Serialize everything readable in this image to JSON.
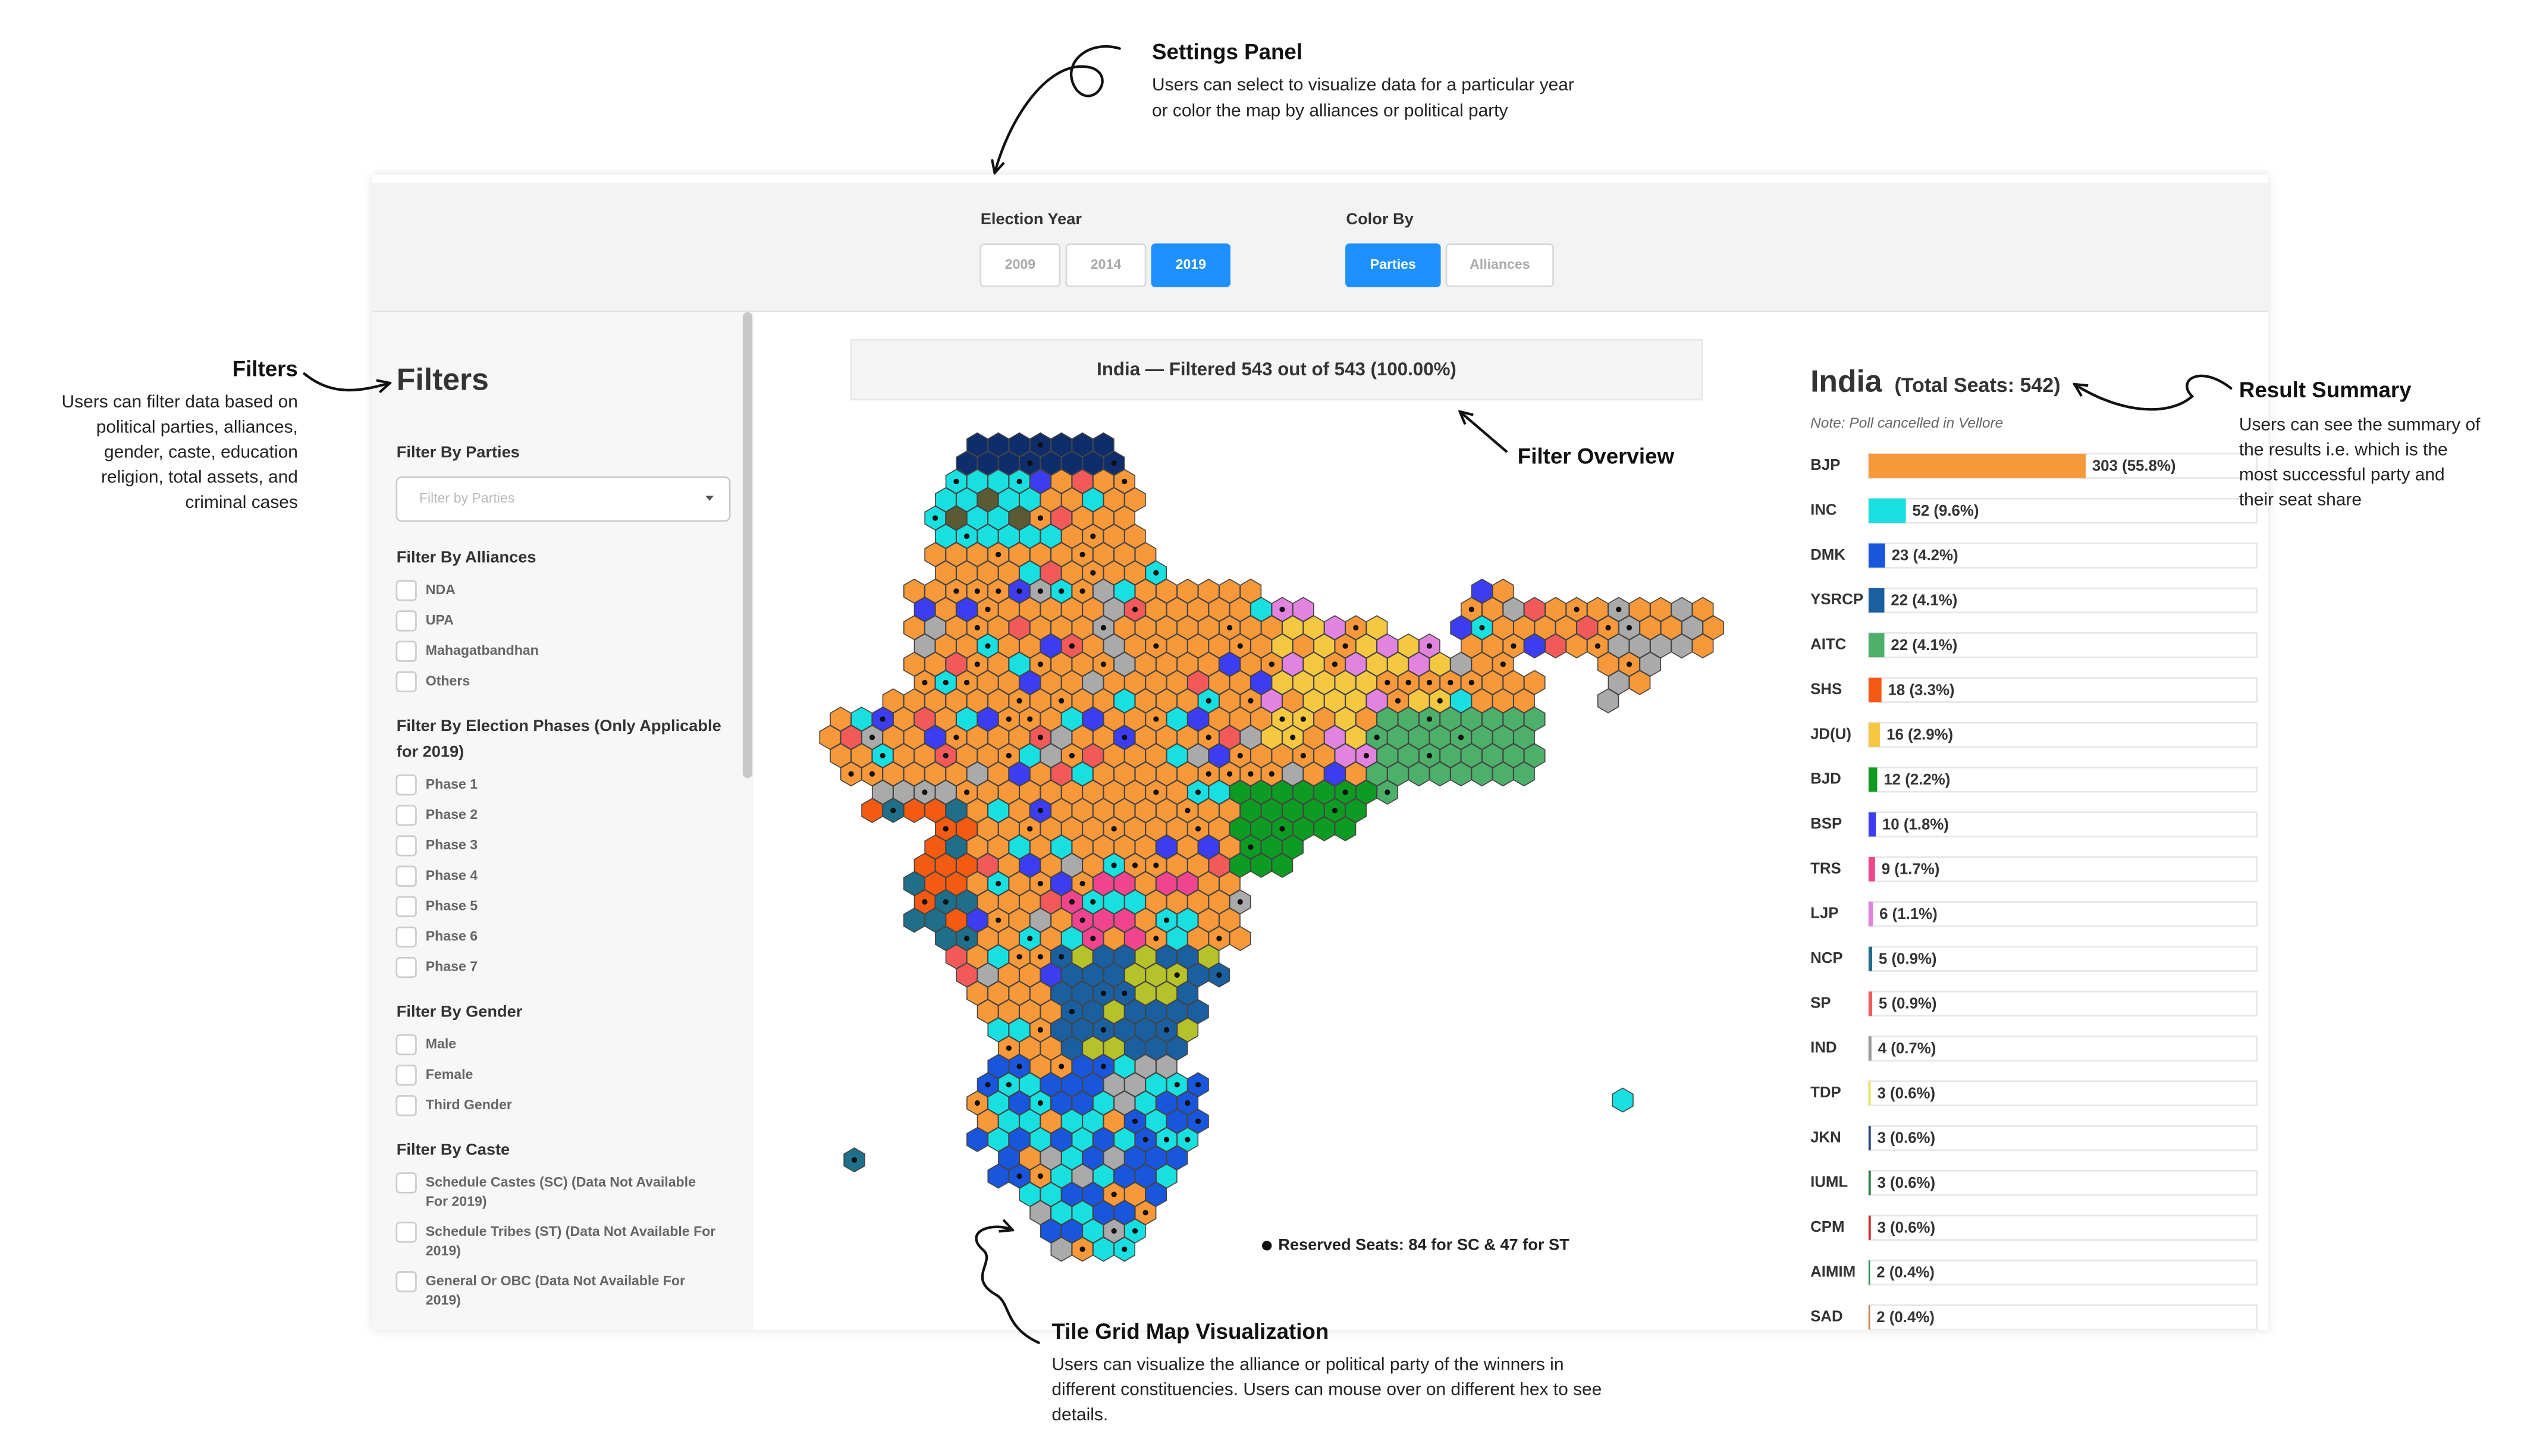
{
  "annotations": {
    "settings": {
      "title": "Settings Panel",
      "lines": [
        "Users can select to visualize data for a particular year",
        "or color the map by alliances or political party"
      ]
    },
    "filters": {
      "title": "Filters",
      "lines": [
        "Users can filter data based on",
        "political parties, alliances,",
        "gender, caste, education",
        "religion, total assets, and",
        "criminal cases"
      ]
    },
    "filter_overview": {
      "title": "Filter Overview"
    },
    "map": {
      "title": "Tile Grid Map Visualization",
      "lines": [
        "Users can visualize the alliance or political party of the winners in",
        "different constituencies. Users can mouse over on different hex to see",
        "details."
      ]
    },
    "results": {
      "title": "Result Summary",
      "lines": [
        "Users can see the summary of",
        "the results i.e. which is the",
        "most successful party and",
        "their seat share"
      ]
    }
  },
  "settings": {
    "election_year": {
      "label": "Election Year",
      "options": [
        "2009",
        "2014",
        "2019"
      ],
      "selected": "2019"
    },
    "color_by": {
      "label": "Color By",
      "options": [
        "Parties",
        "Alliances"
      ],
      "selected": "Parties"
    }
  },
  "filters": {
    "title": "Filters",
    "parties": {
      "label": "Filter By Parties",
      "placeholder": "Filter by Parties"
    },
    "alliances": {
      "label_lines": [
        "Filter By Alliances"
      ],
      "options": [
        [
          "NDA"
        ],
        [
          "UPA"
        ],
        [
          "Mahagatbandhan"
        ],
        [
          "Others"
        ]
      ]
    },
    "phases": {
      "label_lines": [
        "Filter By Election Phases (Only Applicable",
        "for 2019)"
      ],
      "options": [
        [
          "Phase 1"
        ],
        [
          "Phase 2"
        ],
        [
          "Phase 3"
        ],
        [
          "Phase 4"
        ],
        [
          "Phase 5"
        ],
        [
          "Phase 6"
        ],
        [
          "Phase 7"
        ]
      ]
    },
    "gender": {
      "label_lines": [
        "Filter By Gender"
      ],
      "options": [
        [
          "Male"
        ],
        [
          "Female"
        ],
        [
          "Third Gender"
        ]
      ]
    },
    "caste": {
      "label_lines": [
        "Filter By Caste"
      ],
      "options": [
        [
          "Schedule Castes (SC) (Data Not Available",
          "For 2019)"
        ],
        [
          "Schedule Tribes (ST) (Data Not Available For",
          "2019)"
        ],
        [
          "General Or OBC (Data Not Available For",
          "2019)"
        ]
      ]
    }
  },
  "map": {
    "overview": "India — Filtered 543 out of 543 (100.00%)",
    "legend": "Reserved Seats: 84 for SC & 47 for ST"
  },
  "chart_data": {
    "type": "bar",
    "title": "India",
    "subtitle": "(Total Seats: 542)",
    "note": "Note: Poll cancelled in Vellore",
    "categories": [
      "BJP",
      "INC",
      "DMK",
      "YSRCP",
      "AITC",
      "SHS",
      "JD(U)",
      "BJD",
      "BSP",
      "TRS",
      "LJP",
      "NCP",
      "SP",
      "IND",
      "TDP",
      "JKN",
      "IUML",
      "CPM",
      "AIMIM",
      "SAD"
    ],
    "values": [
      303,
      52,
      23,
      22,
      22,
      18,
      16,
      12,
      10,
      9,
      6,
      5,
      5,
      4,
      3,
      3,
      3,
      3,
      2,
      2
    ],
    "value_labels": [
      "303 (55.8%)",
      "52 (9.6%)",
      "23 (4.2%)",
      "22 (4.1%)",
      "22 (4.1%)",
      "18 (3.3%)",
      "16 (2.9%)",
      "12 (2.2%)",
      "10 (1.8%)",
      "9 (1.7%)",
      "6 (1.1%)",
      "5 (0.9%)",
      "5 (0.9%)",
      "4 (0.7%)",
      "3 (0.6%)",
      "3 (0.6%)",
      "3 (0.6%)",
      "3 (0.6%)",
      "2 (0.4%)",
      "2 (0.4%)"
    ],
    "colors": [
      "#f7983a",
      "#19e0e0",
      "#1a56db",
      "#1a5fa0",
      "#4caf6a",
      "#f25b11",
      "#f5c842",
      "#0d9b23",
      "#3c3cf0",
      "#f0458e",
      "#e383e0",
      "#1f6f8b",
      "#f25a5a",
      "#999999",
      "#f2e55a",
      "#1f3a7a",
      "#2a7a3a",
      "#d42020",
      "#2e8b57",
      "#c87f3c"
    ],
    "xlim": [
      0,
      542
    ]
  }
}
